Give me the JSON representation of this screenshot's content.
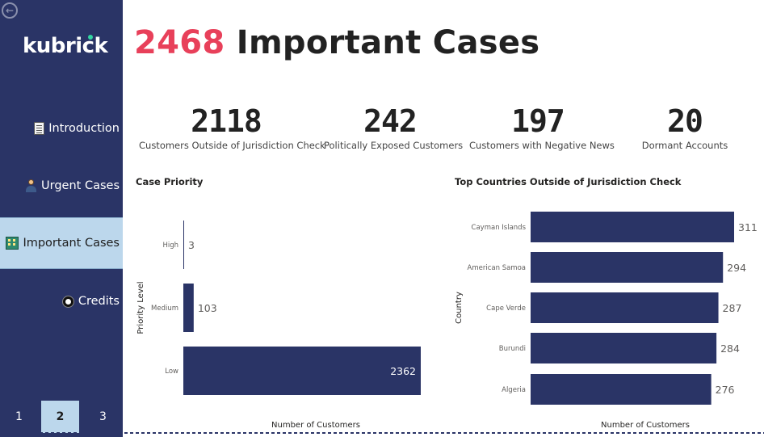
{
  "sidebar": {
    "logo_text": "kubrick",
    "nav_items": [
      {
        "label": "Introduction",
        "icon": "document-icon"
      },
      {
        "label": "Urgent Cases",
        "icon": "person-icon"
      },
      {
        "label": "Important Cases",
        "icon": "building-icon",
        "active": true
      },
      {
        "label": "Credits",
        "icon": "billiard-ball-icon"
      }
    ],
    "pages": [
      "1",
      "2",
      "3"
    ],
    "active_page": "2"
  },
  "header": {
    "count": "2468",
    "title": "Important Cases"
  },
  "kpis": [
    {
      "value": "2118",
      "label": "Customers Outside of Jurisdiction Check"
    },
    {
      "value": "242",
      "label": "Politically Exposed Customers"
    },
    {
      "value": "197",
      "label": "Customers with Negative News"
    },
    {
      "value": "20",
      "label": "Dormant Accounts"
    }
  ],
  "colors": {
    "accent": "#e8405a",
    "bar": "#2a3466",
    "sidebar": "#2a3466",
    "active_nav": "#bcd7ec"
  },
  "chart_data": [
    {
      "type": "bar",
      "orientation": "horizontal",
      "title": "Case Priority",
      "categories": [
        "High",
        "Medium",
        "Low"
      ],
      "values": [
        3,
        103,
        2362
      ],
      "xlabel": "Number of Customers",
      "ylabel": "Priority Level",
      "xlim": [
        0,
        2362
      ]
    },
    {
      "type": "bar",
      "orientation": "horizontal",
      "title": "Top Countries Outside of Jurisdiction Check",
      "categories": [
        "Cayman Islands",
        "American Samoa",
        "Cape Verde",
        "Burundi",
        "Algeria"
      ],
      "values": [
        311,
        294,
        287,
        284,
        276
      ],
      "xlabel": "Number of Customers",
      "ylabel": "Country",
      "xlim": [
        0,
        311
      ]
    }
  ]
}
